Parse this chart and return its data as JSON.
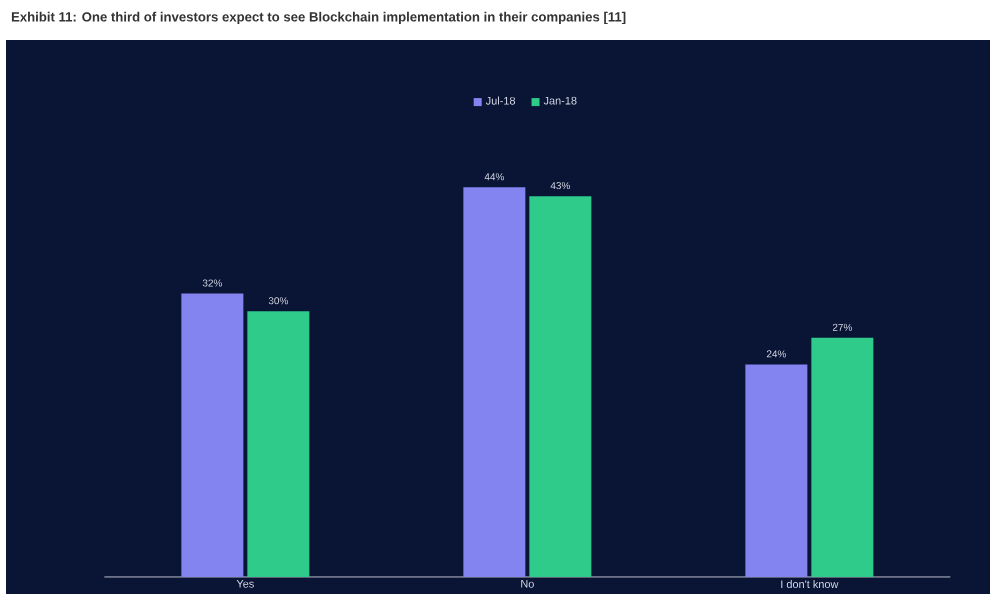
{
  "chart_data": {
    "type": "bar",
    "title": "Exhibit 11: One third of investors expect to see Blockchain implementation in their companies [11]",
    "categories": [
      "Yes",
      "No",
      "I don't know"
    ],
    "series": [
      {
        "name": "Jul-18",
        "color": "#8484f0",
        "values": [
          32,
          44,
          24
        ],
        "value_labels": [
          "32%",
          "44%",
          "24%"
        ]
      },
      {
        "name": "Jan-18",
        "color": "#2fcb8a",
        "values": [
          30,
          43,
          27
        ],
        "value_labels": [
          "30%",
          "43%",
          "27%"
        ]
      }
    ],
    "legend": "top"
  }
}
